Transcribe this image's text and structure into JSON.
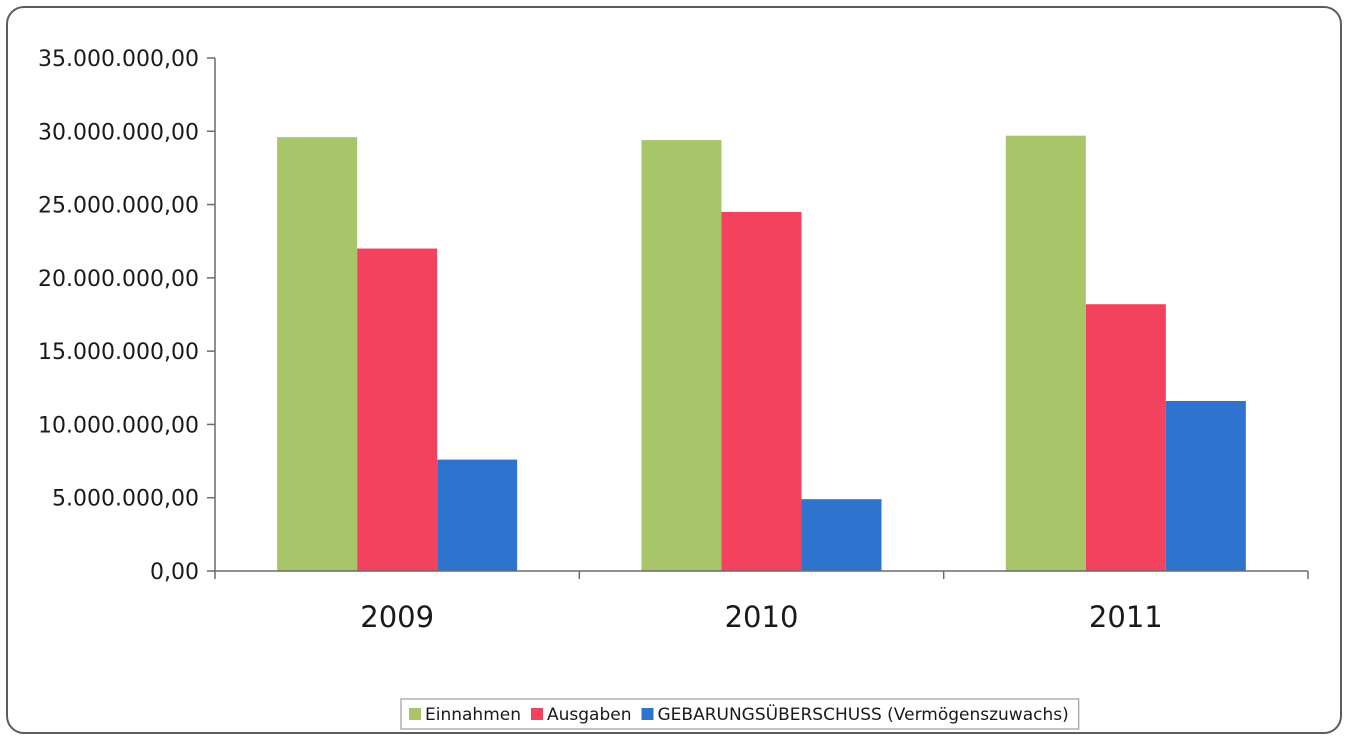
{
  "chart_data": {
    "type": "bar",
    "categories": [
      "2009",
      "2010",
      "2011"
    ],
    "series": [
      {
        "name": "Einnahmen",
        "color": "#a9c56a",
        "values": [
          29600000,
          29400000,
          29700000
        ]
      },
      {
        "name": "Ausgaben",
        "color": "#f2425e",
        "values": [
          22000000,
          24500000,
          18200000
        ]
      },
      {
        "name": "GEBARUNGSÜBERSCHUSS (Vermögenszuwachs)",
        "color": "#2e74cf",
        "values": [
          7600000,
          4900000,
          11600000
        ]
      }
    ],
    "ylim": [
      0,
      35000000
    ],
    "yticks": [
      0,
      5000000,
      10000000,
      15000000,
      20000000,
      25000000,
      30000000,
      35000000
    ],
    "ytick_labels": [
      "0,00",
      "5.000.000,00",
      "10.000.000,00",
      "15.000.000,00",
      "20.000.000,00",
      "25.000.000,00",
      "30.000.000,00",
      "35.000.000,00"
    ],
    "title": "",
    "xlabel": "",
    "ylabel": "",
    "grid": false,
    "legend_position": "bottom"
  }
}
